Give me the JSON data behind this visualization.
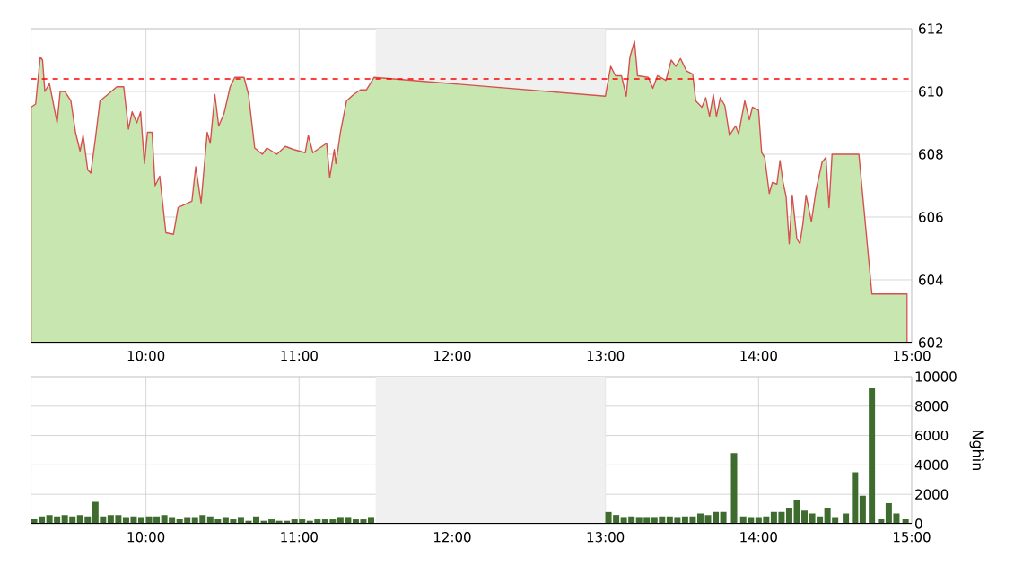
{
  "chart_data": [
    {
      "type": "area",
      "xlim": [
        9.25,
        15
      ],
      "ylim": [
        602,
        612
      ],
      "grid": true,
      "xticks": [
        {
          "value": 10,
          "label": "10:00"
        },
        {
          "value": 11,
          "label": "11:00"
        },
        {
          "value": 12,
          "label": "12:00"
        },
        {
          "value": 13,
          "label": "13:00"
        },
        {
          "value": 14,
          "label": "14:00"
        },
        {
          "value": 15,
          "label": "15:00"
        }
      ],
      "yticks": [
        602,
        604,
        606,
        608,
        610,
        612
      ],
      "ref_lines": [
        {
          "axis": "y",
          "value": 610.4,
          "color": "#ff0000",
          "line_style": "dashed"
        }
      ],
      "bands": [
        {
          "axis": "x",
          "from": 11.5,
          "to": 13,
          "color": "#f0f0f0"
        }
      ],
      "series": [
        {
          "color": "#c8e6b0",
          "x": [
            9.25,
            9.28,
            9.31,
            9.325,
            9.34,
            9.37,
            9.42,
            9.44,
            9.47,
            9.51,
            9.54,
            9.57,
            9.59,
            9.62,
            9.64,
            9.67,
            9.7,
            9.75,
            9.81,
            9.855,
            9.886,
            9.91,
            9.94,
            9.965,
            9.99,
            10.01,
            10.04,
            10.06,
            10.09,
            10.13,
            10.18,
            10.21,
            10.3,
            10.325,
            10.36,
            10.4,
            10.42,
            10.45,
            10.475,
            10.51,
            10.55,
            10.58,
            10.64,
            10.67,
            10.71,
            10.76,
            10.79,
            10.855,
            10.91,
            10.965,
            11.04,
            11.06,
            11.09,
            11.18,
            11.2,
            11.23,
            11.24,
            11.27,
            11.31,
            11.355,
            11.4,
            11.44,
            11.49,
            13.0,
            13.035,
            13.066,
            13.105,
            13.136,
            13.16,
            13.19,
            13.21,
            13.28,
            13.31,
            13.34,
            13.395,
            13.43,
            13.46,
            13.49,
            13.53,
            13.57,
            13.59,
            13.63,
            13.655,
            13.68,
            13.705,
            13.725,
            13.75,
            13.78,
            13.81,
            13.85,
            13.87,
            13.91,
            13.94,
            13.96,
            14.0,
            14.02,
            14.04,
            14.07,
            14.09,
            14.12,
            14.14,
            14.16,
            14.18,
            14.2,
            14.22,
            14.25,
            14.27,
            14.29,
            14.31,
            14.345,
            14.375,
            14.415,
            14.44,
            14.46,
            14.48,
            14.655,
            14.74,
            14.97
          ],
          "values": [
            609.5,
            609.6,
            611.1,
            611.0,
            610.0,
            610.25,
            609.0,
            610.0,
            610.0,
            609.7,
            608.7,
            608.1,
            608.6,
            607.5,
            607.4,
            608.5,
            609.7,
            609.9,
            610.15,
            610.15,
            608.8,
            609.35,
            609.0,
            609.35,
            607.7,
            608.7,
            608.7,
            607.0,
            607.3,
            605.5,
            605.45,
            606.3,
            606.5,
            607.6,
            606.45,
            608.7,
            608.35,
            609.9,
            608.9,
            609.3,
            610.15,
            610.45,
            610.45,
            609.9,
            608.2,
            608.0,
            608.2,
            608.0,
            608.25,
            608.15,
            608.05,
            608.6,
            608.05,
            608.35,
            607.25,
            608.15,
            607.7,
            608.7,
            609.7,
            609.9,
            610.05,
            610.05,
            610.45,
            609.85,
            610.8,
            610.5,
            610.5,
            609.85,
            611.1,
            611.6,
            610.5,
            610.45,
            610.1,
            610.5,
            610.35,
            611.0,
            610.8,
            611.05,
            610.65,
            610.55,
            609.7,
            609.5,
            609.8,
            609.2,
            609.9,
            609.2,
            609.8,
            609.55,
            608.6,
            608.9,
            608.65,
            609.7,
            609.1,
            609.5,
            609.4,
            608.05,
            607.9,
            606.75,
            607.1,
            607.05,
            607.8,
            607.1,
            606.65,
            605.15,
            606.7,
            605.3,
            605.15,
            605.8,
            606.7,
            605.85,
            606.85,
            607.75,
            607.9,
            606.3,
            608.0,
            608.0,
            603.55,
            603.55
          ]
        }
      ]
    },
    {
      "type": "bar",
      "xlim": [
        9.25,
        15
      ],
      "ylim": [
        0,
        10000
      ],
      "grid": true,
      "ylabel": "Nghìn",
      "xticks": [
        {
          "value": 10,
          "label": "10:00"
        },
        {
          "value": 11,
          "label": "11:00"
        },
        {
          "value": 12,
          "label": "12:00"
        },
        {
          "value": 13,
          "label": "13:00"
        },
        {
          "value": 14,
          "label": "14:00"
        },
        {
          "value": 15,
          "label": "15:00"
        }
      ],
      "yticks": [
        0,
        2000,
        4000,
        6000,
        8000,
        10000
      ],
      "bands": [
        {
          "axis": "x",
          "from": 11.5,
          "to": 13,
          "color": "#f0f0f0"
        }
      ],
      "series": [
        {
          "color": "#3e6b2e",
          "x": [
            9.27,
            9.32,
            9.37,
            9.42,
            9.47,
            9.52,
            9.57,
            9.62,
            9.67,
            9.72,
            9.77,
            9.82,
            9.87,
            9.92,
            9.97,
            10.02,
            10.07,
            10.12,
            10.17,
            10.22,
            10.27,
            10.32,
            10.37,
            10.42,
            10.47,
            10.52,
            10.57,
            10.62,
            10.67,
            10.72,
            10.77,
            10.82,
            10.87,
            10.92,
            10.97,
            11.02,
            11.07,
            11.12,
            11.17,
            11.22,
            11.27,
            11.32,
            11.37,
            11.42,
            11.47,
            13.02,
            13.07,
            13.12,
            13.17,
            13.22,
            13.27,
            13.32,
            13.37,
            13.42,
            13.47,
            13.52,
            13.57,
            13.62,
            13.67,
            13.72,
            13.77,
            13.84,
            13.9,
            13.95,
            14.0,
            14.05,
            14.1,
            14.15,
            14.2,
            14.25,
            14.3,
            14.35,
            14.4,
            14.45,
            14.5,
            14.57,
            14.63,
            14.68,
            14.74,
            14.8,
            14.85,
            14.9,
            14.96
          ],
          "values": [
            300,
            500,
            600,
            500,
            600,
            500,
            600,
            500,
            1500,
            500,
            600,
            600,
            400,
            500,
            400,
            500,
            500,
            600,
            400,
            300,
            400,
            400,
            600,
            500,
            300,
            400,
            300,
            400,
            200,
            500,
            200,
            300,
            200,
            200,
            300,
            300,
            200,
            300,
            300,
            300,
            400,
            400,
            300,
            300,
            400,
            800,
            600,
            400,
            500,
            400,
            400,
            400,
            500,
            500,
            400,
            500,
            500,
            700,
            600,
            800,
            800,
            4800,
            500,
            400,
            400,
            500,
            800,
            800,
            1100,
            1600,
            900,
            700,
            500,
            1100,
            400,
            700,
            3500,
            1900,
            9200,
            300,
            1400,
            700,
            300
          ]
        }
      ]
    }
  ]
}
